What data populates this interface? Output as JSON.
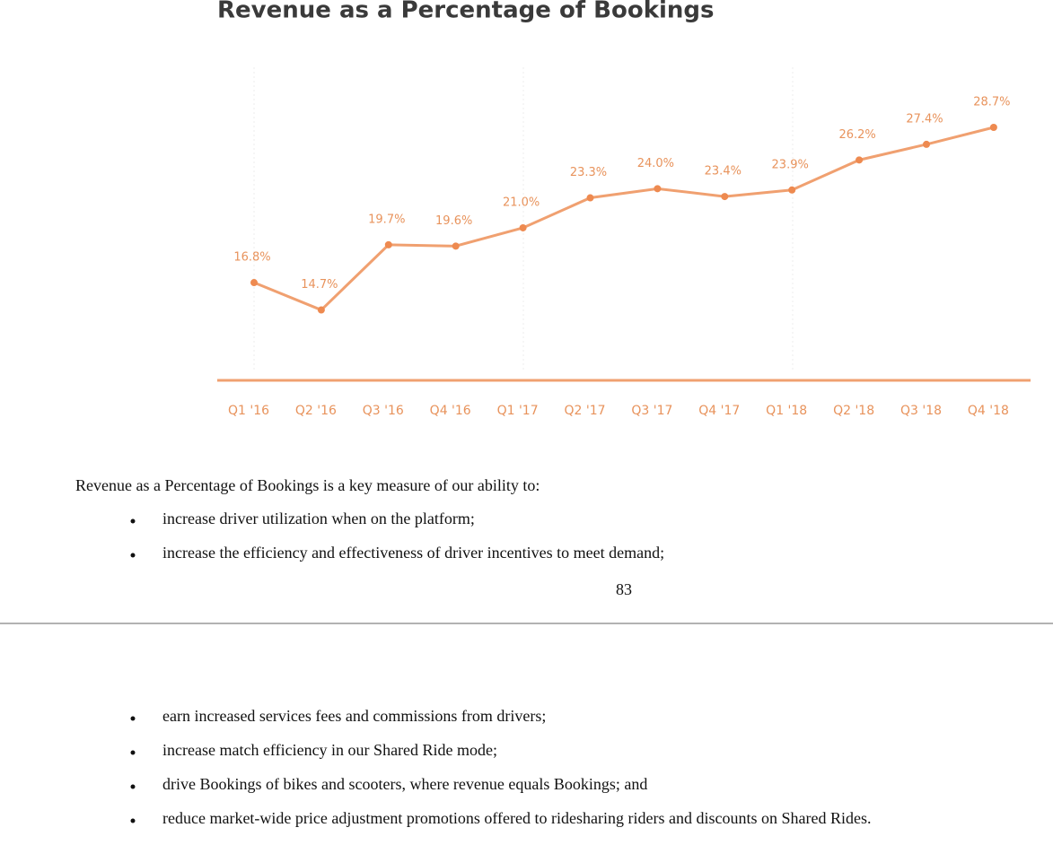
{
  "chart_data": {
    "type": "line",
    "title": "Revenue as a Percentage of Bookings",
    "categories": [
      "Q1 '16",
      "Q2 '16",
      "Q3 '16",
      "Q4 '16",
      "Q1 '17",
      "Q2 '17",
      "Q3 '17",
      "Q4 '17",
      "Q1 '18",
      "Q2 '18",
      "Q3 '18",
      "Q4 '18"
    ],
    "values": [
      16.8,
      14.7,
      19.7,
      19.6,
      21.0,
      23.3,
      24.0,
      23.4,
      23.9,
      26.2,
      27.4,
      28.7
    ],
    "value_labels": [
      "16.8%",
      "14.7%",
      "19.7%",
      "19.6%",
      "21.0%",
      "23.3%",
      "24.0%",
      "23.4%",
      "23.9%",
      "26.2%",
      "27.4%",
      "28.7%"
    ],
    "color": "#f0a070"
  },
  "document": {
    "intro": "Revenue as a Percentage of Bookings is a key measure of our ability to:",
    "bullets_page_1": [
      "increase driver utilization when on the platform;",
      "increase the efficiency and effectiveness of driver incentives to meet demand;"
    ],
    "page_number": "83",
    "bullets_page_2": [
      "earn increased services fees and commissions from drivers;",
      "increase match efficiency in our Shared Ride mode;",
      "drive Bookings of bikes and scooters, where revenue equals Bookings; and",
      "reduce market-wide price adjustment promotions offered to ridesharing riders and discounts on Shared Rides."
    ]
  }
}
